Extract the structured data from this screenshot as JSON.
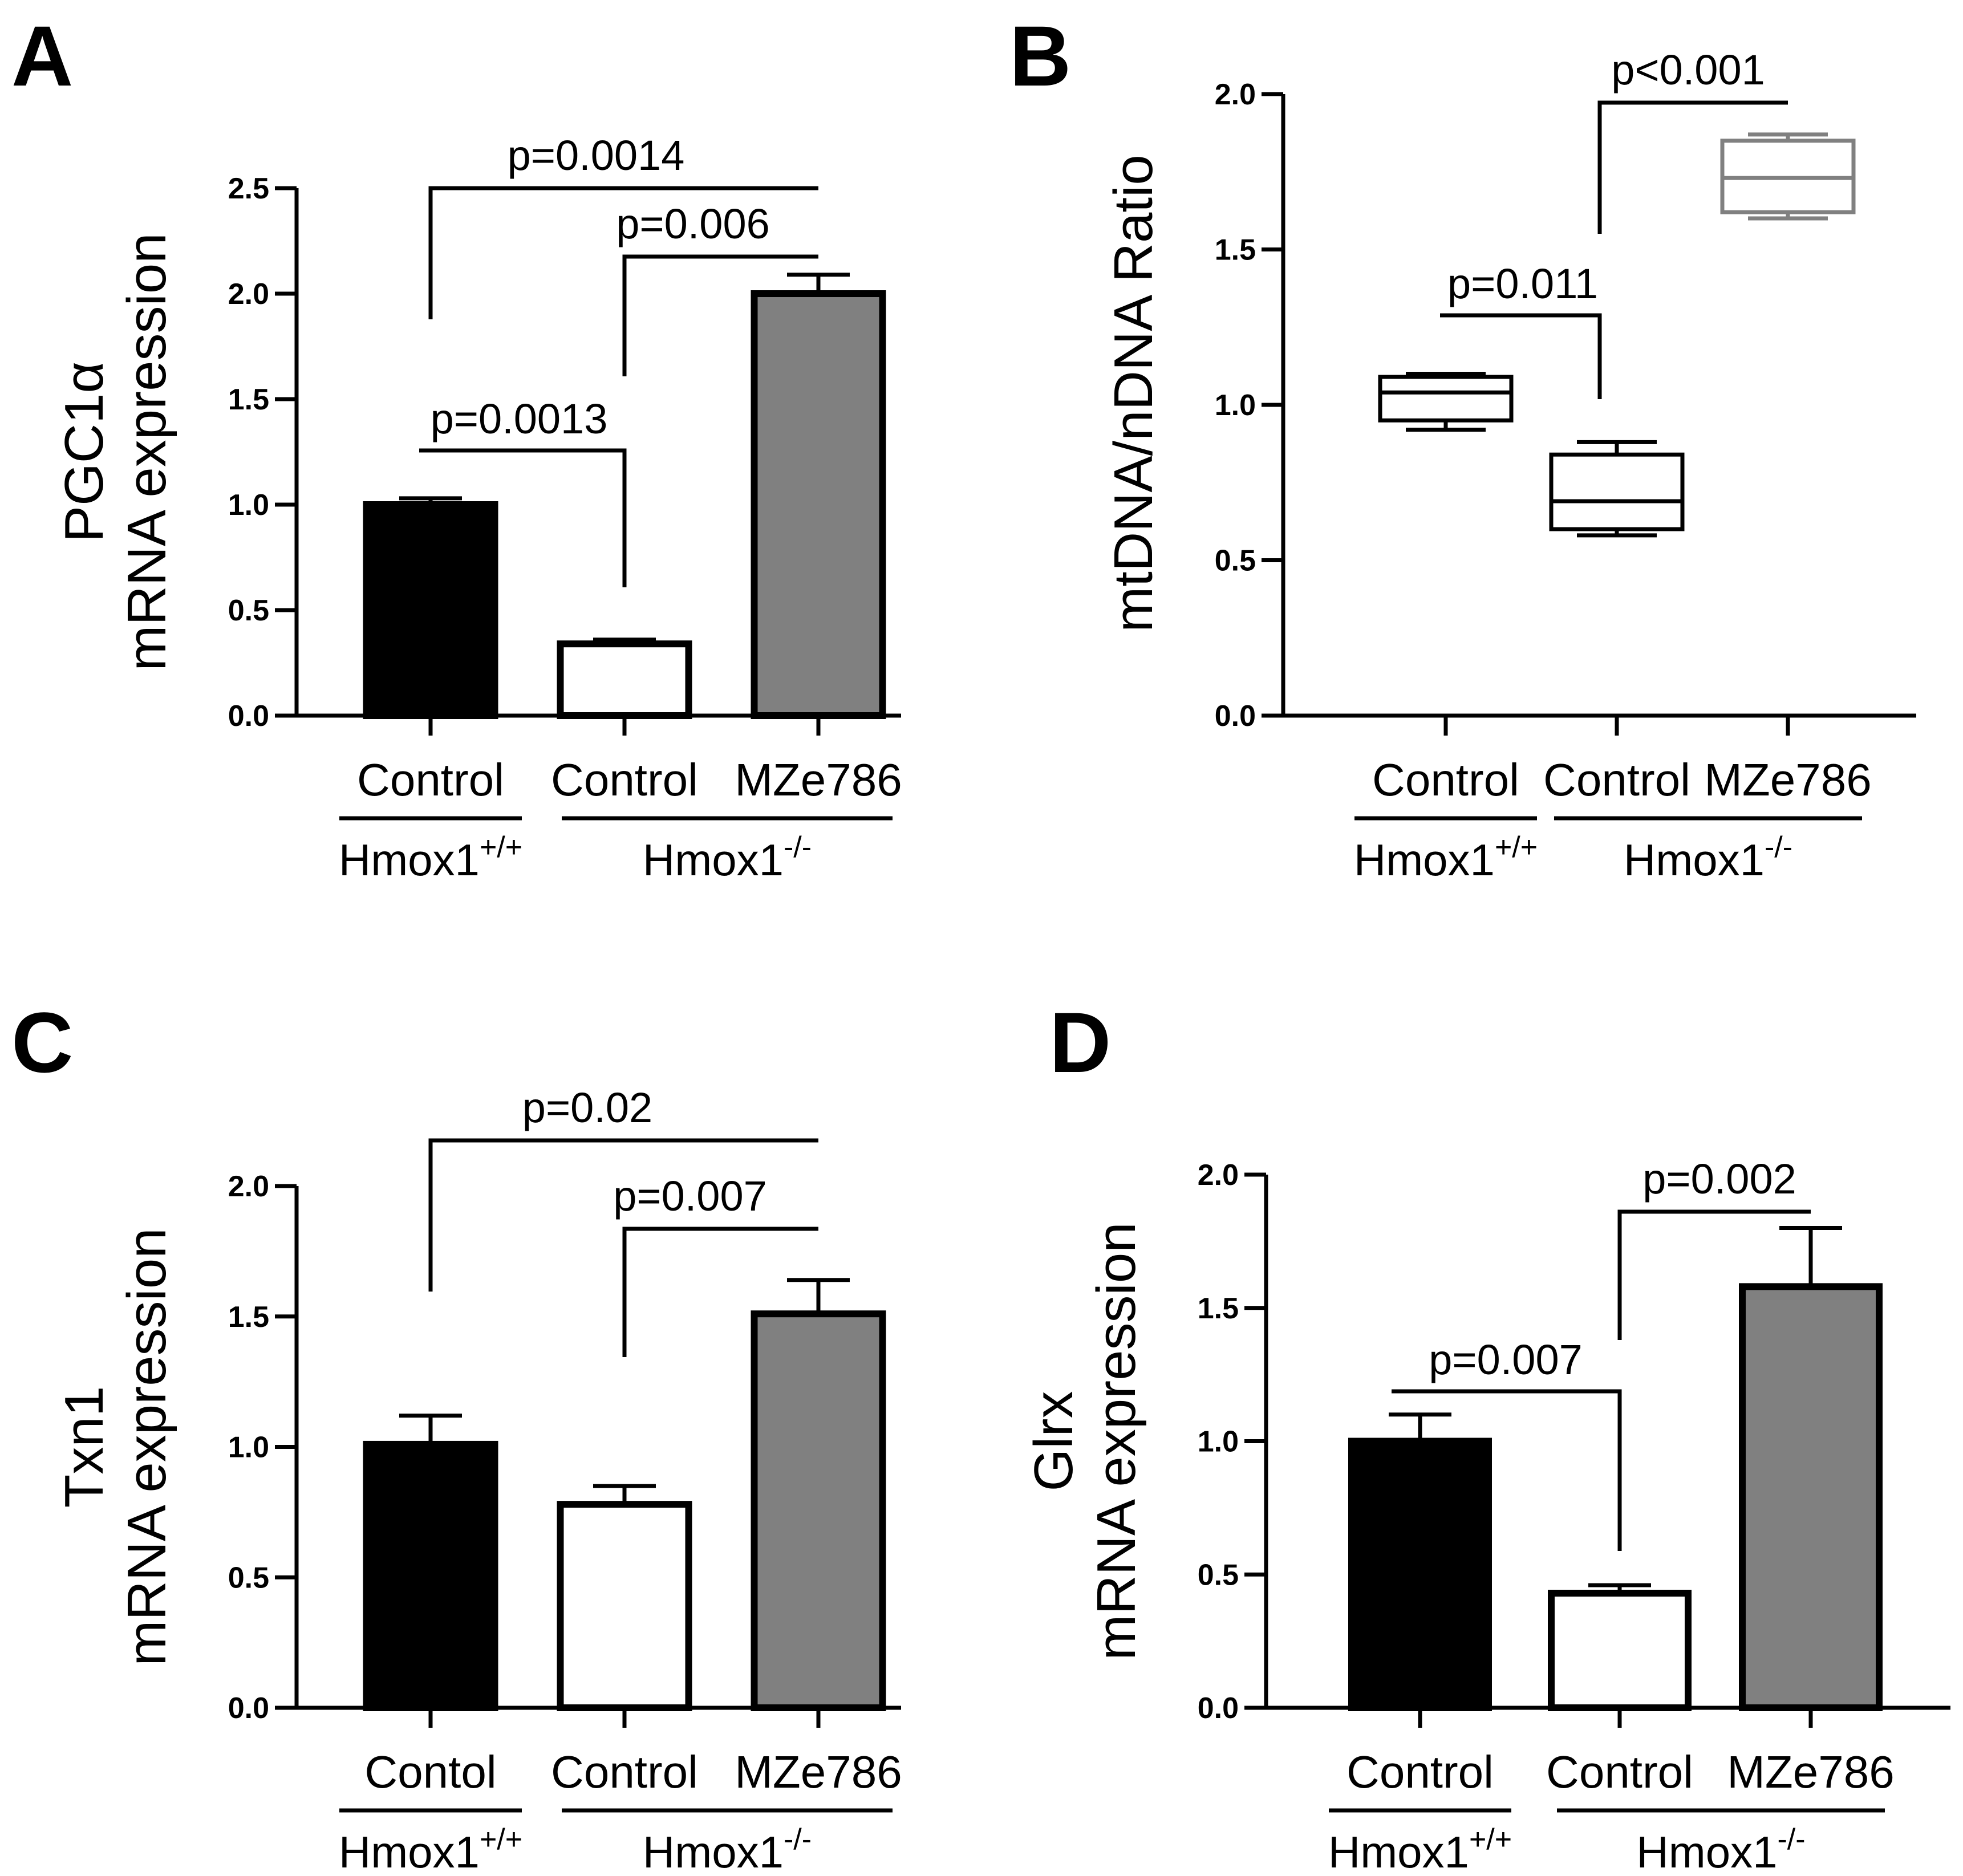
{
  "chart_data": [
    {
      "panel": "A",
      "type": "bar",
      "ylabel_line1": "PGC1α",
      "ylabel_line2": "mRNA expression",
      "ylim": [
        0,
        2.5
      ],
      "yticks": [
        "0.0",
        "0.5",
        "1.0",
        "1.5",
        "2.0",
        "2.5"
      ],
      "categories": [
        "Control",
        "Control",
        "MZe786"
      ],
      "values": [
        1.0,
        0.34,
        2.0
      ],
      "errors": [
        0.03,
        0.02,
        0.09
      ],
      "colors": [
        "#000000",
        "#ffffff",
        "#808080"
      ],
      "groups": [
        {
          "label": "Hmox1",
          "sup": "+/+",
          "from": 0,
          "to": 0
        },
        {
          "label": "Hmox1",
          "sup": "-/-",
          "from": 1,
          "to": 2
        }
      ],
      "comparisons": [
        {
          "from": 0,
          "to": 2,
          "label": "p=0.0014"
        },
        {
          "from": 1,
          "to": 2,
          "label": "p=0.006"
        },
        {
          "from": 0,
          "to": 1,
          "label": "p=0.0013"
        }
      ]
    },
    {
      "panel": "B",
      "type": "box",
      "ylabel_line1": "mtDNA/nDNA Ratio",
      "ylabel_line2": "",
      "ylim": [
        0,
        2.0
      ],
      "yticks": [
        "0.0",
        "0.5",
        "1.0",
        "1.5",
        "2.0"
      ],
      "categories": [
        "Control",
        "Control",
        "MZe786"
      ],
      "boxes": [
        {
          "min": 0.92,
          "q1": 0.95,
          "median": 1.04,
          "q3": 1.09,
          "max": 1.1,
          "color": "#000000"
        },
        {
          "min": 0.58,
          "q1": 0.6,
          "median": 0.69,
          "q3": 0.84,
          "max": 0.88,
          "color": "#000000"
        },
        {
          "min": 1.6,
          "q1": 1.62,
          "median": 1.73,
          "q3": 1.85,
          "max": 1.87,
          "color": "#808080"
        }
      ],
      "groups": [
        {
          "label": "Hmox1",
          "sup": "+/+",
          "from": 0,
          "to": 0
        },
        {
          "label": "Hmox1",
          "sup": "-/-",
          "from": 1,
          "to": 2
        }
      ],
      "comparisons": [
        {
          "from": 1,
          "to": 2,
          "label": "p<0.001"
        },
        {
          "from": 0,
          "to": 1,
          "label": "p=0.011"
        }
      ]
    },
    {
      "panel": "C",
      "type": "bar",
      "ylabel_line1": "Txn1",
      "ylabel_line2": "mRNA expression",
      "ylim": [
        0,
        2.0
      ],
      "yticks": [
        "0.0",
        "0.5",
        "1.0",
        "1.5",
        "2.0"
      ],
      "categories": [
        "Contol",
        "Control",
        "MZe786"
      ],
      "values": [
        1.01,
        0.78,
        1.51
      ],
      "errors": [
        0.11,
        0.07,
        0.13
      ],
      "colors": [
        "#000000",
        "#ffffff",
        "#808080"
      ],
      "groups": [
        {
          "label": "Hmox1",
          "sup": "+/+",
          "from": 0,
          "to": 0
        },
        {
          "label": "Hmox1",
          "sup": "-/-",
          "from": 1,
          "to": 2
        }
      ],
      "comparisons": [
        {
          "from": 0,
          "to": 2,
          "label": "p=0.02"
        },
        {
          "from": 1,
          "to": 2,
          "label": "p=0.007"
        }
      ]
    },
    {
      "panel": "D",
      "type": "bar",
      "ylabel_line1": "Glrx",
      "ylabel_line2": "mRNA expression",
      "ylim": [
        0,
        2.0
      ],
      "yticks": [
        "0.0",
        "0.5",
        "1.0",
        "1.5",
        "2.0"
      ],
      "categories": [
        "Control",
        "Control",
        "MZe786"
      ],
      "values": [
        1.0,
        0.43,
        1.58
      ],
      "errors": [
        0.1,
        0.03,
        0.22
      ],
      "colors": [
        "#000000",
        "#ffffff",
        "#808080"
      ],
      "groups": [
        {
          "label": "Hmox1",
          "sup": "+/+",
          "from": 0,
          "to": 0
        },
        {
          "label": "Hmox1",
          "sup": "-/-",
          "from": 1,
          "to": 2
        }
      ],
      "comparisons": [
        {
          "from": 1,
          "to": 2,
          "label": "p=0.002"
        },
        {
          "from": 0,
          "to": 1,
          "label": "p=0.007"
        }
      ]
    }
  ]
}
